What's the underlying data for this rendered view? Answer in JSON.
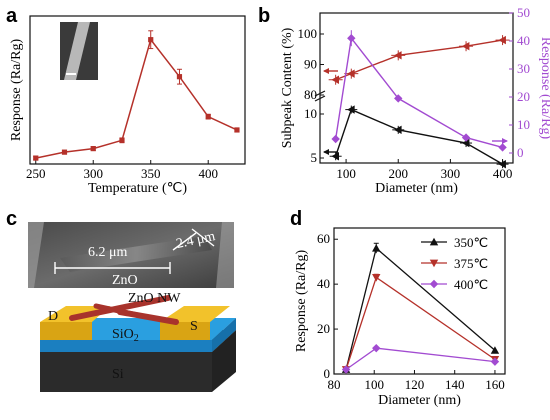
{
  "panels": {
    "a": {
      "letter": "a"
    },
    "b": {
      "letter": "b"
    },
    "c": {
      "letter": "c",
      "sem_dim1": "6.2 μm",
      "sem_dim2": "2.4 μm",
      "sem_label": "ZnO",
      "device_nw": "ZnO NW",
      "device_d": "D",
      "device_s": "S",
      "device_sio2": "SiO",
      "device_sio2_sub": "2",
      "device_si": "Si"
    },
    "d": {
      "letter": "d"
    }
  },
  "colors": {
    "red": "#b5312a",
    "black": "#111111",
    "purple": "#a24bd1",
    "device_blue": "#2a9fe0",
    "device_gold": "#f2c22b"
  },
  "chart_data": [
    {
      "id": "a",
      "type": "line",
      "title": "",
      "xlabel": "Temperature (℃)",
      "ylabel": "Response (Ra/Rg)",
      "xlim": [
        245,
        432
      ],
      "ylim": [
        0,
        50
      ],
      "xticks": [
        "250",
        "300",
        "350",
        "400"
      ],
      "x": [
        250,
        275,
        300,
        325,
        350,
        375,
        400,
        425
      ],
      "series": [
        {
          "values": [
            2,
            4,
            5.2,
            8,
            42,
            29.5,
            16,
            11.5
          ],
          "err": [
            0.6,
            0.6,
            0.6,
            0.8,
            3.0,
            2.5,
            0.8,
            0.6
          ]
        }
      ],
      "inset": "SEM image"
    },
    {
      "id": "b",
      "type": "line",
      "xlabel": "Diameter (nm)",
      "ylabel_left": "Subpeak Content (%)",
      "ylabel_right": "Response (Ra/Rg)",
      "xlim": [
        50,
        420
      ],
      "xticks": [
        "100",
        "200",
        "300",
        "400"
      ],
      "left_upper_ticks": [
        "80",
        "90",
        "100"
      ],
      "left_lower_ticks": [
        "5",
        "10"
      ],
      "right_ticks": [
        "0",
        "10",
        "20",
        "30",
        "40",
        "50"
      ],
      "broken_axis": true,
      "series": [
        {
          "axis": "left",
          "x": [
            80,
            110,
            200,
            330,
            400
          ],
          "values": [
            85,
            87,
            93,
            96,
            98
          ]
        },
        {
          "axis": "left",
          "x": [
            80,
            110,
            200,
            330,
            400
          ],
          "values": [
            5.2,
            10.5,
            8.2,
            6.7,
            4.3
          ]
        },
        {
          "axis": "right",
          "x": [
            80,
            110,
            200,
            330,
            400
          ],
          "values": [
            5,
            41,
            19.5,
            5.5,
            2
          ]
        }
      ]
    },
    {
      "id": "d",
      "type": "line",
      "xlabel": "Diameter (nm)",
      "ylabel": "Response (Ra/Rg)",
      "xlim": [
        80,
        165
      ],
      "ylim": [
        0,
        65
      ],
      "xticks": [
        "80",
        "100",
        "120",
        "140",
        "160"
      ],
      "yticks": [
        "0",
        "20",
        "40",
        "60"
      ],
      "x": [
        86,
        101,
        160
      ],
      "series": [
        {
          "name": "350℃",
          "values": [
            2,
            56,
            10.5
          ],
          "marker": "up-triangle"
        },
        {
          "name": "375℃",
          "values": [
            2,
            43,
            6.5
          ],
          "marker": "down-triangle"
        },
        {
          "name": "400℃",
          "values": [
            2,
            11.5,
            5.5
          ],
          "marker": "diamond"
        }
      ],
      "legend": "top-right"
    }
  ]
}
